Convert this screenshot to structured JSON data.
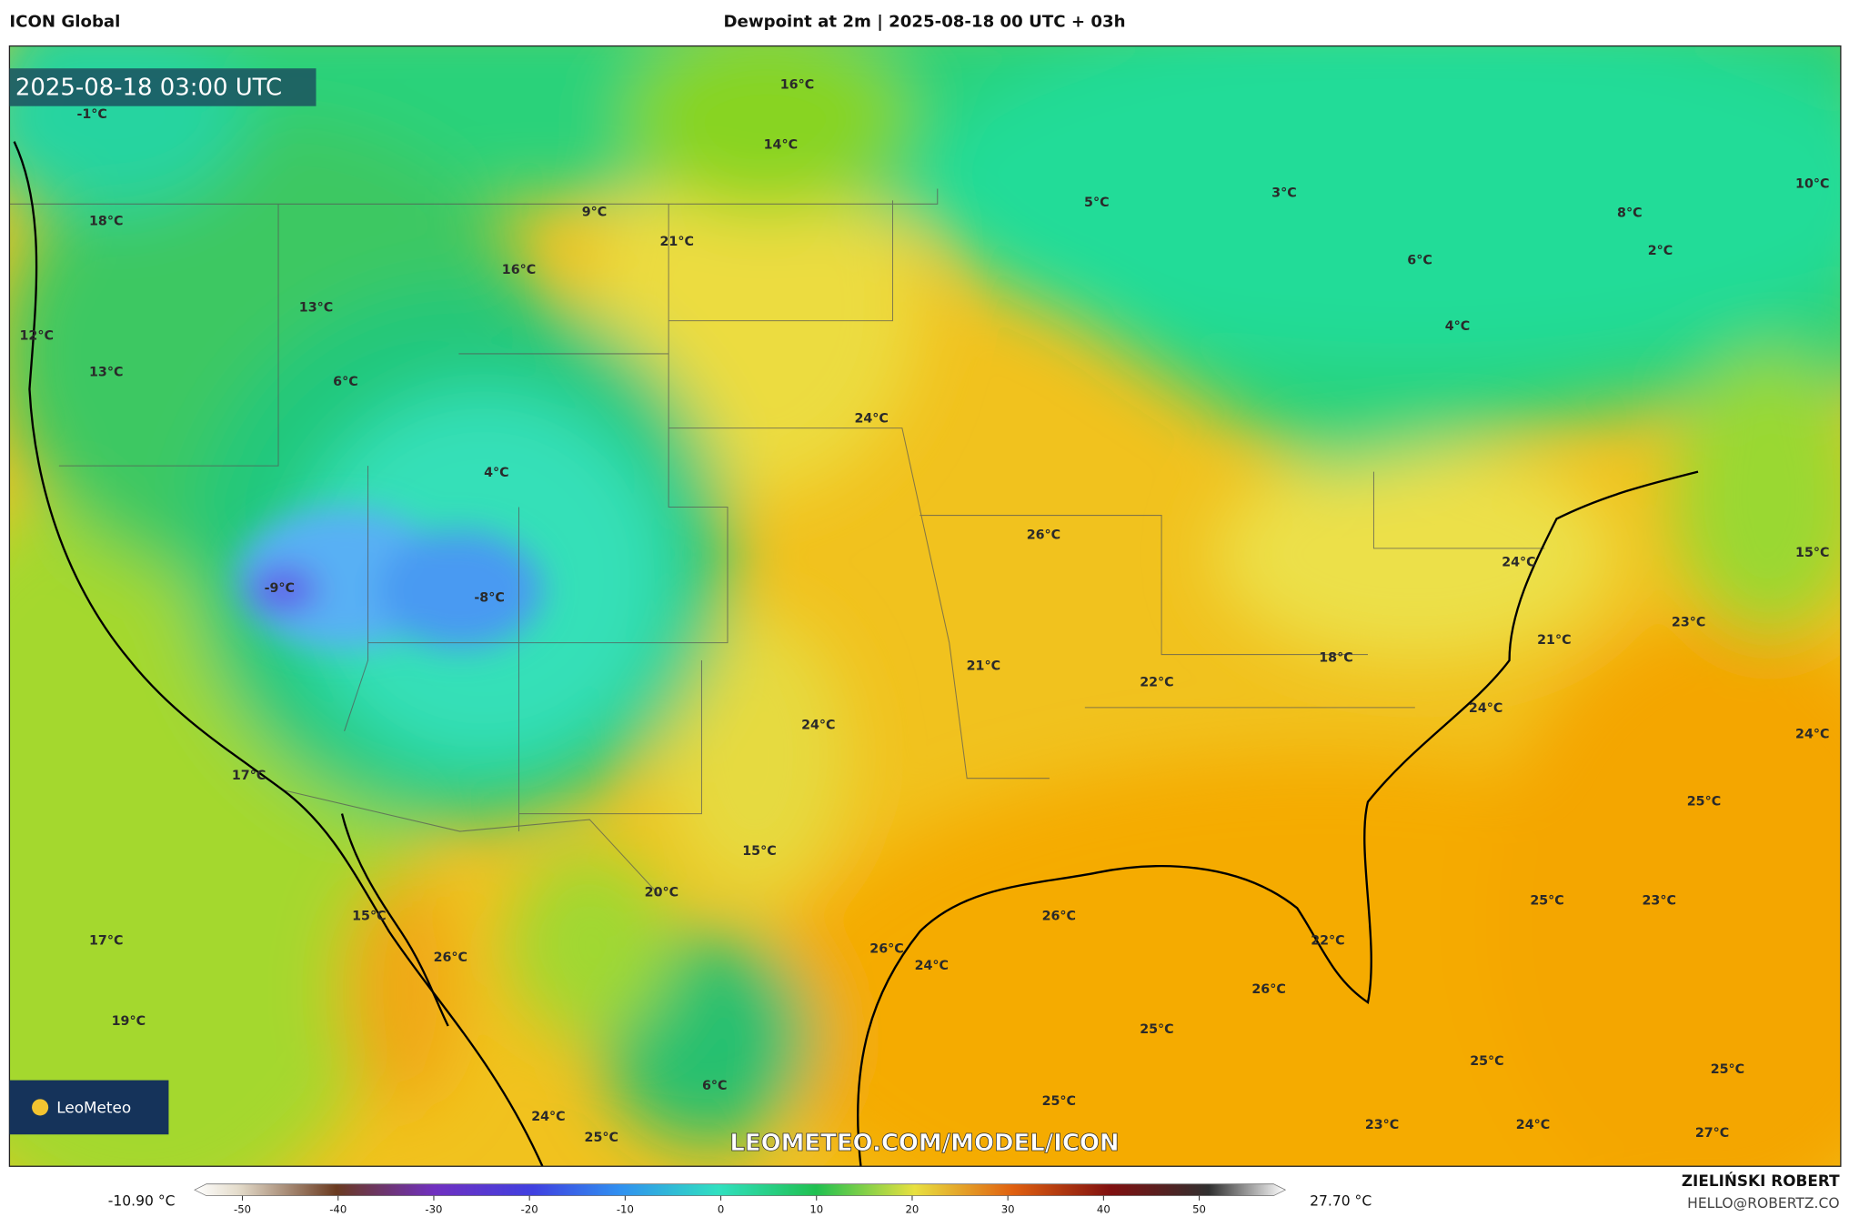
{
  "header": {
    "model": "ICON Global",
    "title": "Dewpoint at 2m | 2025-08-18 00 UTC + 03h"
  },
  "map": {
    "timestamp": "2025-08-18 03:00 UTC",
    "labels": [
      "-1°C",
      "16°C",
      "14°C",
      "9°C",
      "5°C",
      "3°C",
      "10°C",
      "8°C",
      "2°C",
      "6°C",
      "4°C",
      "18°C",
      "21°C",
      "16°C",
      "13°C",
      "12°C",
      "13°C",
      "6°C",
      "24°C",
      "4°C",
      "26°C",
      "15°C",
      "-9°C",
      "-8°C",
      "24°C",
      "23°C",
      "21°C",
      "18°C",
      "21°C",
      "22°C",
      "24°C",
      "24°C",
      "24°C",
      "17°C",
      "25°C",
      "15°C",
      "20°C",
      "15°C",
      "26°C",
      "25°C",
      "23°C",
      "17°C",
      "22°C",
      "26°C",
      "26°C",
      "24°C",
      "26°C",
      "19°C",
      "25°C",
      "25°C",
      "25°C",
      "6°C",
      "25°C",
      "24°C",
      "25°C",
      "23°C",
      "24°C",
      "27°C"
    ],
    "watermark": "LEOMETEO.COM/MODEL/ICON",
    "logo": "LeoMeteo"
  },
  "colorbar": {
    "min_label": "-10.90 °C",
    "max_label": "27.70 °C",
    "lim": [
      -55,
      59
    ],
    "ticks": [
      -50,
      -40,
      -30,
      -20,
      -10,
      0,
      10,
      20,
      30,
      40,
      50
    ]
  },
  "footer": {
    "author": "ZIELIŃSKI ROBERT",
    "email": "HELLO@ROBERTZ.CO"
  }
}
